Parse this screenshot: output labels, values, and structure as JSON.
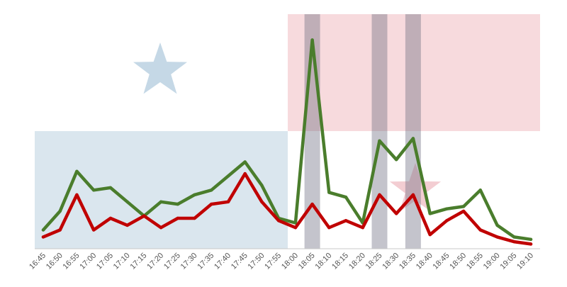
{
  "chart_data": {
    "type": "line",
    "title": "",
    "xlabel": "",
    "ylabel": "",
    "grid": false,
    "categories": [
      "16:45",
      "16:50",
      "16:55",
      "17:00",
      "17:05",
      "17:10",
      "17:15",
      "17:20",
      "17:25",
      "17:30",
      "17:35",
      "17:40",
      "17:45",
      "17:50",
      "17:55",
      "18:00",
      "18:05",
      "18:10",
      "18:15",
      "18:20",
      "18:25",
      "18:30",
      "18:35",
      "18:40",
      "18:45",
      "18:50",
      "18:55",
      "19:00",
      "19:05",
      "19:10"
    ],
    "ylim": [
      0,
      100
    ],
    "series": [
      {
        "color": "#4a7d2c",
        "values": [
          8,
          16,
          33,
          25,
          26,
          20,
          14,
          20,
          19,
          23,
          25,
          31,
          37,
          27,
          13,
          11,
          89,
          24,
          22,
          11,
          46,
          38,
          47,
          15,
          17,
          18,
          25,
          10,
          5,
          4
        ]
      },
      {
        "color": "#c00000",
        "values": [
          5,
          8,
          23,
          8,
          13,
          10,
          14,
          9,
          13,
          13,
          19,
          20,
          32,
          20,
          12,
          9,
          19,
          9,
          12,
          9,
          23,
          15,
          23,
          6,
          12,
          16,
          8,
          5,
          3,
          2
        ]
      }
    ],
    "highlight_columns": [
      "18:05",
      "18:25",
      "18:35"
    ],
    "highlight_color": "#6b6b7f"
  },
  "background": {
    "flag_blue": "#dae6ee",
    "flag_red": "#f7dadd",
    "star_blue": "#c5d8e6",
    "star_red": "#f3cdd2",
    "star_blue_icon": "star-icon",
    "star_red_icon": "star-icon"
  }
}
